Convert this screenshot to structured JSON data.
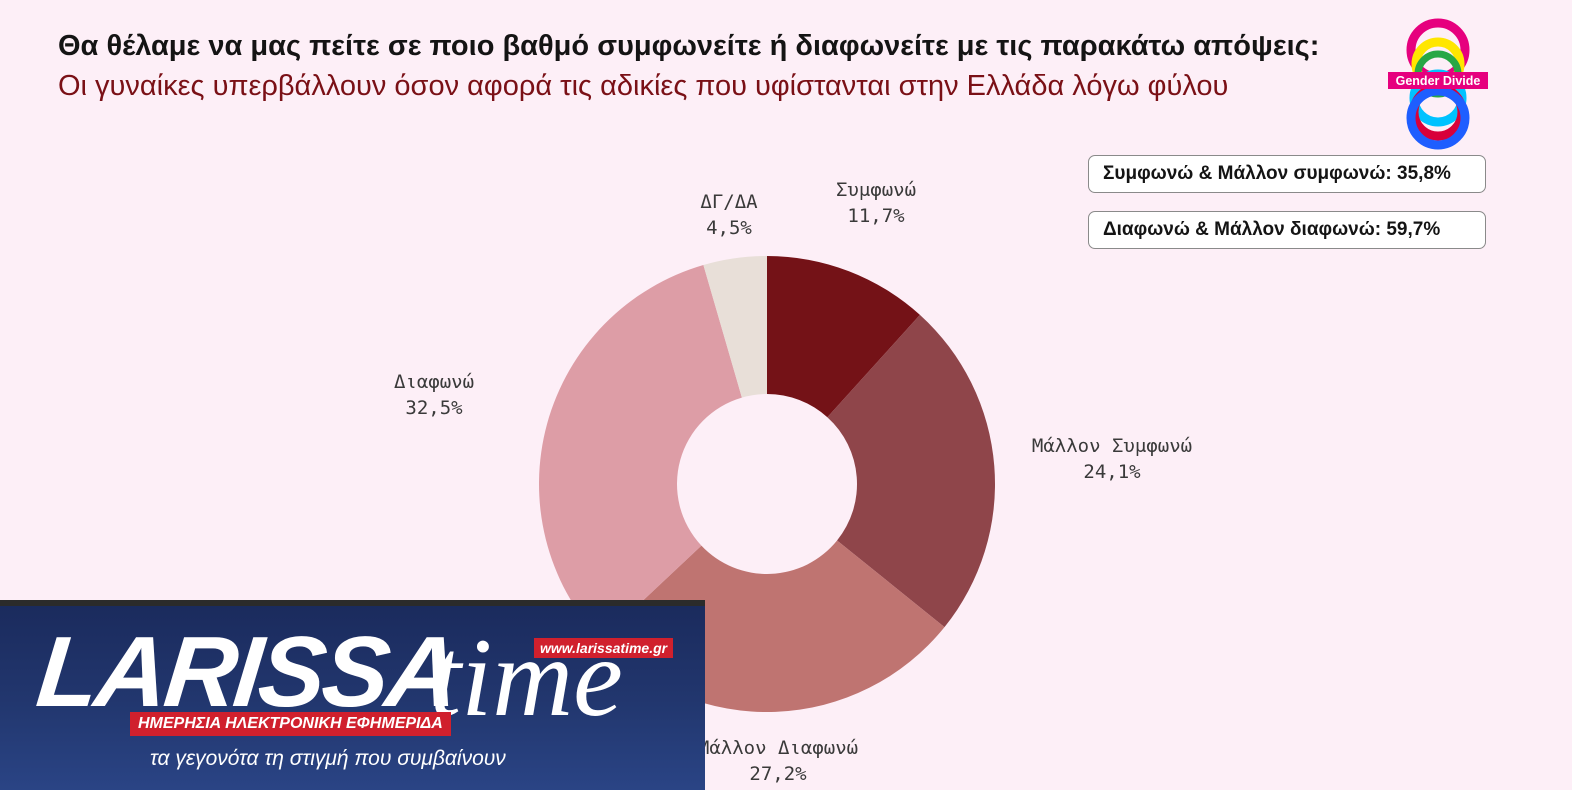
{
  "header": {
    "question": "Θα θέλαμε να μας πείτε σε ποιο βαθμό συμφωνείτε ή διαφωνείτε με τις παρακάτω απόψεις:",
    "statement": "Οι γυναίκες υπερβάλλουν όσον αφορά τις αδικίες που υφίστανται στην Ελλάδα λόγω φύλου"
  },
  "logo": {
    "text": "Gender Divide"
  },
  "summary": {
    "agree": "Συμφωνώ & Μάλλον συμφωνώ: 35,8%",
    "disagree": "Διαφωνώ & Μάλλον διαφωνώ: 59,7%"
  },
  "watermark": {
    "brand": "LARISSA",
    "brand_suffix": "time",
    "url": "www.larissatime.gr",
    "banner": "ΗΜΕΡΗΣΙΑ ΗΛΕΚΤΡΟΝΙΚΗ ΕΦΗΜΕΡΙΔΑ",
    "tagline": "τα γεγονότα τη στιγμή που συμβαίνουν"
  },
  "chart_data": {
    "type": "pie",
    "donut": true,
    "slices": [
      {
        "label": "Συμφωνώ",
        "value": 11.7,
        "value_label": "11,7%",
        "color": "#741217"
      },
      {
        "label": "Μάλλον Συμφωνώ",
        "value": 24.1,
        "value_label": "24,1%",
        "color": "#8f454a"
      },
      {
        "label": "Μάλλον Διαφωνώ",
        "value": 27.2,
        "value_label": "27,2%",
        "color": "#bf7471"
      },
      {
        "label": "Διαφωνώ",
        "value": 32.5,
        "value_label": "32,5%",
        "color": "#dd9da6"
      },
      {
        "label": "ΔΓ/ΔΑ",
        "value": 4.5,
        "value_label": "4,5%",
        "color": "#e8dfd8"
      }
    ]
  }
}
